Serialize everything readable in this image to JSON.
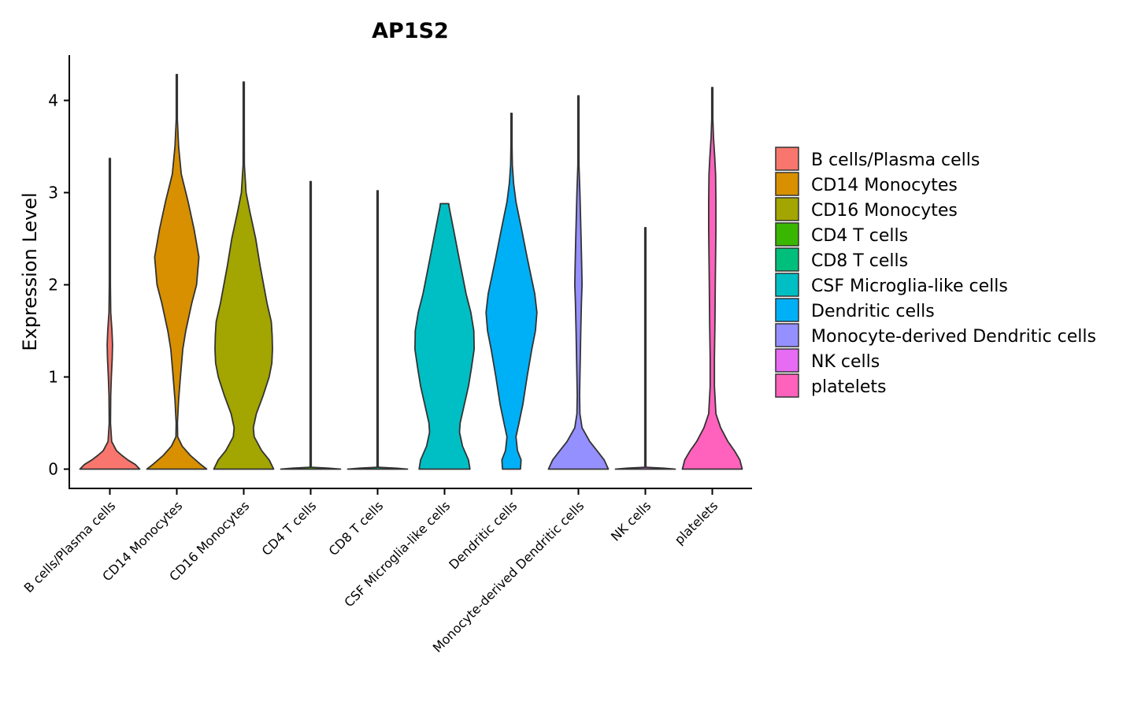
{
  "chart_data": {
    "type": "violin",
    "title": "AP1S2",
    "xlabel": "",
    "ylabel": "Expression Level",
    "ylim": [
      -0.2,
      4.5
    ],
    "yticks": [
      0,
      1,
      2,
      3,
      4
    ],
    "grid": false,
    "legend_position": "right",
    "categories": [
      "B cells/Plasma cells",
      "CD14 Monocytes",
      "CD16 Monocytes",
      "CD4 T cells",
      "CD8 T cells",
      "CSF Microglia-like cells",
      "Dendritic cells",
      "Monocyte-derived Dendritic cells",
      "NK cells",
      "platelets"
    ],
    "colors": [
      "#F8766D",
      "#D89000",
      "#A3A500",
      "#39B600",
      "#00BF7D",
      "#00BFC4",
      "#00B0F6",
      "#9590FF",
      "#E76BF3",
      "#FF62BC"
    ],
    "series": [
      {
        "name": "B cells/Plasma cells",
        "max": 3.37,
        "density_y": [
          0,
          0.05,
          0.1,
          0.15,
          0.2,
          0.3,
          0.5,
          0.8,
          1.0,
          1.2,
          1.35,
          1.5,
          1.7,
          2.0,
          2.5,
          3.0,
          3.37
        ],
        "density_w": [
          1.0,
          0.85,
          0.6,
          0.4,
          0.22,
          0.06,
          0.02,
          0.03,
          0.05,
          0.08,
          0.09,
          0.07,
          0.03,
          0.015,
          0.01,
          0.005,
          0.003
        ]
      },
      {
        "name": "CD14 Monocytes",
        "max": 4.28,
        "density_y": [
          0,
          0.05,
          0.15,
          0.25,
          0.35,
          0.5,
          0.75,
          1.0,
          1.3,
          1.5,
          1.8,
          2.0,
          2.3,
          2.6,
          2.9,
          3.2,
          3.5,
          3.8,
          4.1,
          4.28
        ],
        "density_w": [
          1.0,
          0.8,
          0.45,
          0.18,
          0.03,
          0.02,
          0.06,
          0.12,
          0.2,
          0.3,
          0.5,
          0.66,
          0.74,
          0.58,
          0.38,
          0.15,
          0.06,
          0.015,
          0.005,
          0.003
        ]
      },
      {
        "name": "CD16 Monocytes",
        "max": 4.2,
        "density_y": [
          0,
          0.1,
          0.2,
          0.35,
          0.45,
          0.6,
          0.8,
          1.0,
          1.15,
          1.3,
          1.45,
          1.6,
          1.8,
          2.2,
          2.5,
          2.8,
          3.0,
          3.3,
          3.7,
          4.2
        ],
        "density_w": [
          1.0,
          0.85,
          0.6,
          0.35,
          0.32,
          0.42,
          0.65,
          0.85,
          0.94,
          0.96,
          0.95,
          0.92,
          0.78,
          0.55,
          0.4,
          0.2,
          0.08,
          0.02,
          0.008,
          0.003
        ]
      },
      {
        "name": "CD4 T cells",
        "max": 3.12,
        "density_y": [
          0,
          0.01,
          0.02,
          0.05,
          0.5,
          1.0,
          2.0,
          3.12
        ],
        "density_w": [
          1.0,
          0.6,
          0.02,
          0.008,
          0.006,
          0.005,
          0.004,
          0.003
        ]
      },
      {
        "name": "CD8 T cells",
        "max": 3.02,
        "density_y": [
          0,
          0.01,
          0.02,
          0.05,
          0.5,
          1.0,
          2.0,
          3.02
        ],
        "density_w": [
          1.0,
          0.6,
          0.02,
          0.008,
          0.006,
          0.005,
          0.004,
          0.003
        ]
      },
      {
        "name": "CSF Microglia-like cells",
        "max": 2.88,
        "density_y": [
          0,
          0.1,
          0.25,
          0.4,
          0.5,
          0.7,
          0.9,
          1.1,
          1.3,
          1.5,
          1.7,
          1.9,
          2.1,
          2.3,
          2.5,
          2.7,
          2.85,
          2.88
        ],
        "density_w": [
          0.85,
          0.8,
          0.6,
          0.5,
          0.52,
          0.66,
          0.8,
          0.9,
          0.99,
          0.98,
          0.88,
          0.72,
          0.6,
          0.48,
          0.36,
          0.24,
          0.15,
          0.14
        ]
      },
      {
        "name": "Dendritic cells",
        "max": 3.86,
        "density_y": [
          0,
          0.1,
          0.2,
          0.35,
          0.5,
          0.7,
          1.0,
          1.3,
          1.5,
          1.7,
          1.9,
          2.1,
          2.3,
          2.6,
          2.9,
          3.1,
          3.3,
          3.5,
          3.86
        ],
        "density_w": [
          0.3,
          0.32,
          0.2,
          0.15,
          0.25,
          0.38,
          0.52,
          0.68,
          0.8,
          0.85,
          0.78,
          0.65,
          0.52,
          0.34,
          0.15,
          0.07,
          0.03,
          0.01,
          0.003
        ]
      },
      {
        "name": "Monocyte-derived Dendritic cells",
        "max": 4.05,
        "density_y": [
          0,
          0.1,
          0.2,
          0.3,
          0.45,
          0.6,
          0.8,
          1.0,
          1.5,
          1.8,
          2.0,
          2.2,
          2.5,
          3.0,
          3.3,
          3.6,
          4.05
        ],
        "density_w": [
          1.0,
          0.86,
          0.62,
          0.38,
          0.12,
          0.05,
          0.04,
          0.05,
          0.08,
          0.1,
          0.12,
          0.11,
          0.09,
          0.05,
          0.015,
          0.006,
          0.003
        ]
      },
      {
        "name": "NK cells",
        "max": 2.62,
        "density_y": [
          0,
          0.01,
          0.02,
          0.05,
          0.5,
          1.0,
          2.0,
          2.62
        ],
        "density_w": [
          1.0,
          0.6,
          0.02,
          0.008,
          0.006,
          0.005,
          0.004,
          0.003
        ]
      },
      {
        "name": "platelets",
        "max": 4.14,
        "density_y": [
          0,
          0.1,
          0.2,
          0.3,
          0.45,
          0.6,
          0.9,
          1.2,
          1.6,
          2.0,
          2.3,
          2.6,
          2.9,
          3.2,
          3.4,
          3.6,
          3.8,
          4.14
        ],
        "density_w": [
          1.0,
          0.92,
          0.74,
          0.52,
          0.28,
          0.12,
          0.07,
          0.07,
          0.09,
          0.1,
          0.11,
          0.12,
          0.12,
          0.11,
          0.08,
          0.04,
          0.015,
          0.003
        ]
      }
    ]
  }
}
